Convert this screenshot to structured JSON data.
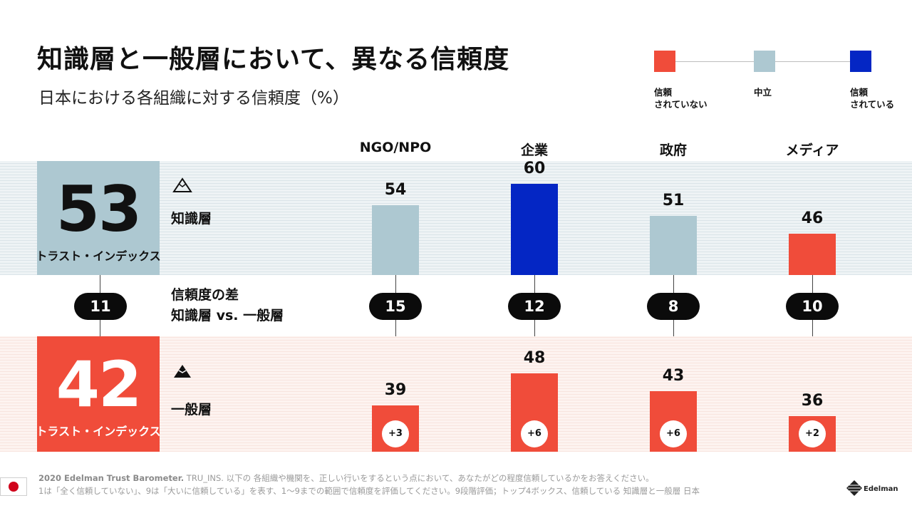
{
  "title": "知識層と一般層において、異なる信頼度",
  "subtitle": "日本における各組織に対する信頼度（%）",
  "legend": {
    "distrusted": {
      "line1": "信頼",
      "line2": "されていない",
      "color": "#F04C3A"
    },
    "neutral": {
      "line1": "中立",
      "color": "#ADC8D1"
    },
    "trusted": {
      "line1": "信頼",
      "line2": "されている",
      "color": "#0426C4"
    }
  },
  "informed": {
    "index": "53",
    "index_label": "トラスト・インデックス",
    "label": "知識層",
    "icon": "outline-triangle-icon"
  },
  "general": {
    "index": "42",
    "index_label": "トラスト・インデックス",
    "label": "一般層",
    "icon": "mountain-icon"
  },
  "gap": {
    "value": "11",
    "label_line1": "信頼度の差",
    "label_line2": "知識層 vs. 一般層"
  },
  "chart_data": {
    "type": "bar",
    "categories": [
      "NGO/NPO",
      "企業",
      "政府",
      "メディア"
    ],
    "series": [
      {
        "name": "知識層",
        "values": [
          54,
          60,
          51,
          46
        ],
        "colors": [
          "#ADC8D1",
          "#0426C4",
          "#ADC8D1",
          "#F04C3A"
        ]
      },
      {
        "name": "一般層",
        "values": [
          39,
          48,
          43,
          36
        ],
        "colors": [
          "#F04C3A",
          "#F04C3A",
          "#F04C3A",
          "#F04C3A"
        ]
      }
    ],
    "gap_values": [
      15,
      12,
      8,
      10
    ],
    "change_labels": [
      "+3",
      "+6",
      "+6",
      "+2"
    ]
  },
  "footer": {
    "source_bold": "2020 Edelman Trust Barometer.",
    "line1": " TRU_INS. 以下の 各組織や機関を、正しい行いをするという点において、あなたがどの程度信頼しているかをお答えください。",
    "line2": "1は「全く信頼していない」、9は「大いに信頼している」を表す、1～9までの範囲で信頼度を評価してください。9段階評価；トップ4ボックス、信頼している 知識層と一般層 日本"
  },
  "brand": "Edelman",
  "flag_icon": "japan-flag-icon"
}
